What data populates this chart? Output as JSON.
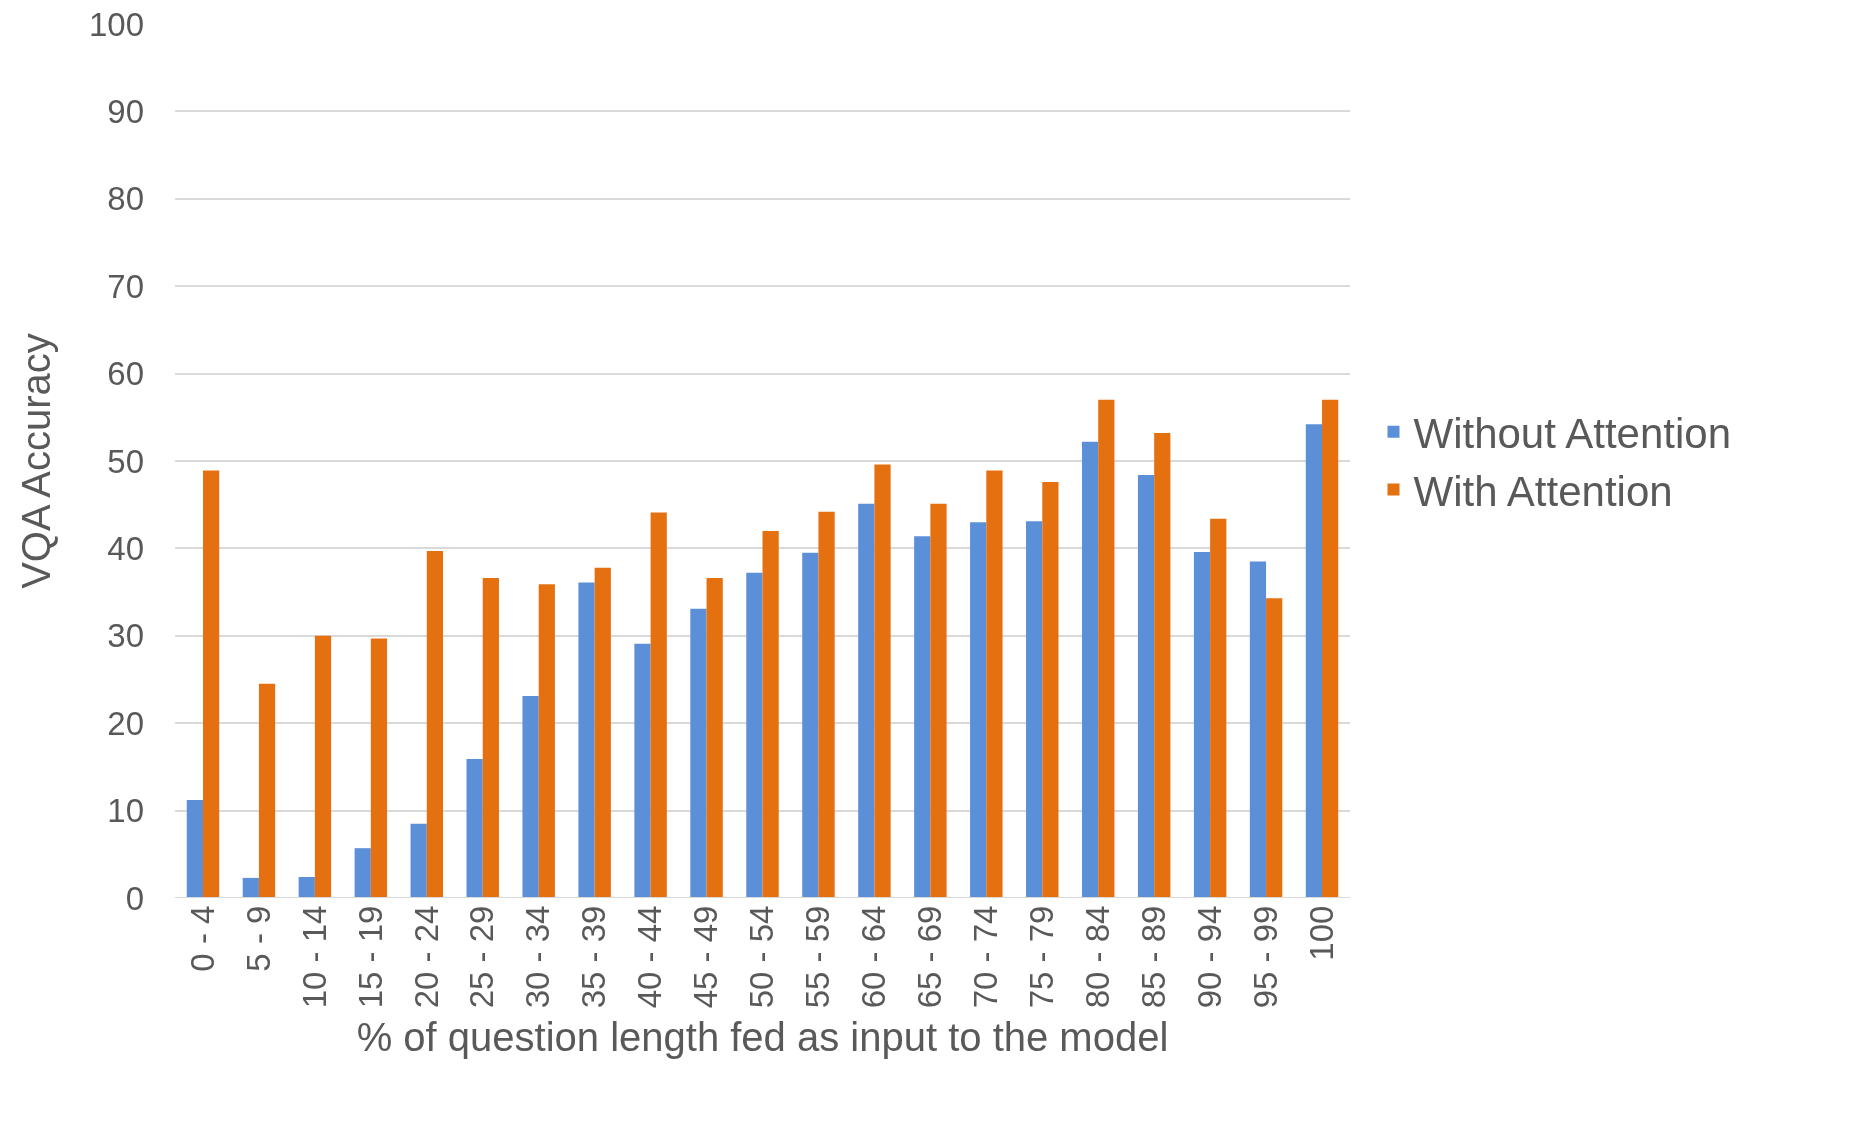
{
  "chart_data": {
    "type": "bar",
    "xlabel": "% of question length fed as input to the model",
    "ylabel": "VQA Accuracy",
    "categories": [
      "0 - 4",
      "5 - 9",
      "10 - 14",
      "15 - 19",
      "20 - 24",
      "25 - 29",
      "30 - 34",
      "35 - 39",
      "40 - 44",
      "45 - 49",
      "50 - 54",
      "55 - 59",
      "60 - 64",
      "65 - 69",
      "70 - 74",
      "75 - 79",
      "80 - 84",
      "85 - 89",
      "90 - 94",
      "95 - 99",
      "100"
    ],
    "series": [
      {
        "name": "Without Attention",
        "color": "#5b8fd8",
        "values": [
          11.2,
          2.3,
          2.4,
          5.7,
          8.5,
          15.9,
          23.1,
          36.1,
          29.1,
          33.1,
          37.2,
          39.5,
          45.1,
          41.4,
          43.0,
          43.1,
          52.2,
          48.4,
          39.6,
          38.5,
          54.2
        ]
      },
      {
        "name": "With Attention",
        "color": "#e5700f",
        "values": [
          48.9,
          24.5,
          30.0,
          29.7,
          39.7,
          36.6,
          35.9,
          37.8,
          44.1,
          36.6,
          42.0,
          44.2,
          49.6,
          45.1,
          48.9,
          47.6,
          57.0,
          53.2,
          43.4,
          34.3,
          57.0
        ]
      }
    ],
    "ylim": [
      0,
      100
    ],
    "yticks": [
      0,
      10,
      20,
      30,
      40,
      50,
      60,
      70,
      80,
      90,
      100
    ],
    "grid": "y",
    "legend": "right"
  }
}
